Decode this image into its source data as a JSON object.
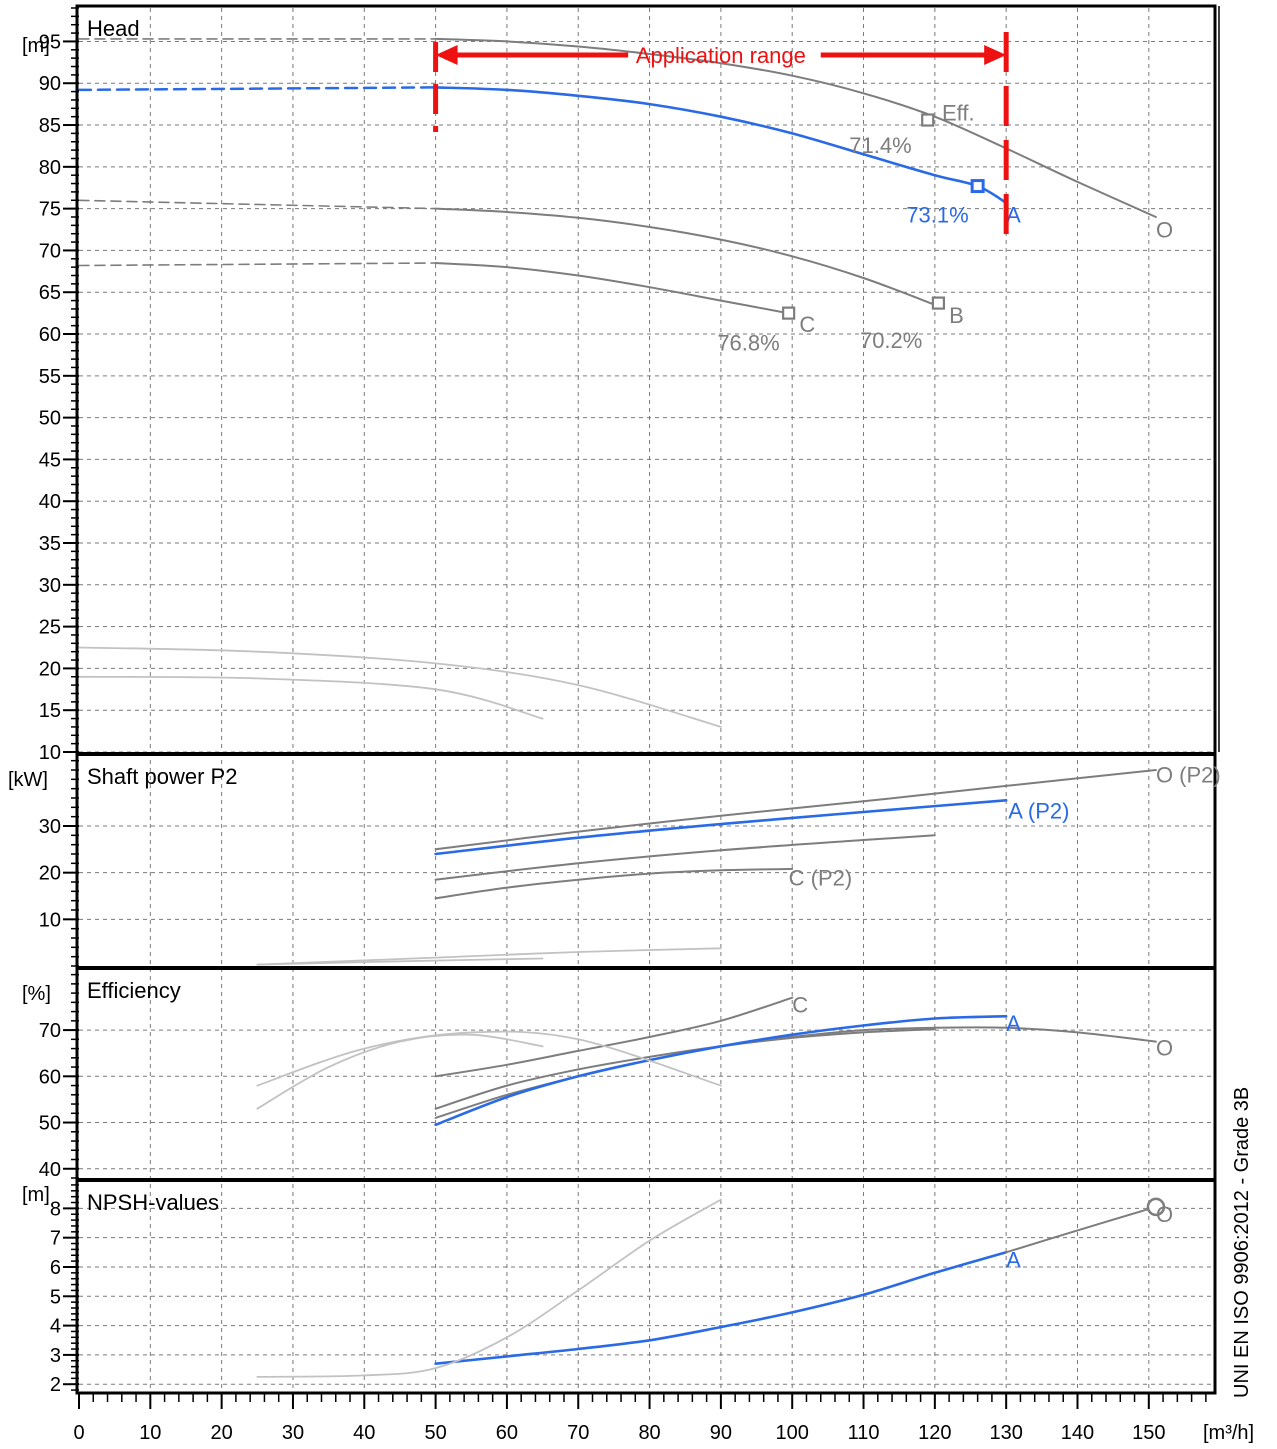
{
  "chart_data": {
    "type": "line",
    "x_unit_label": "[m³/h]",
    "x_ticks": [
      0,
      10,
      20,
      30,
      40,
      50,
      60,
      70,
      80,
      90,
      100,
      110,
      120,
      130,
      140,
      150
    ],
    "xlim": [
      0,
      159
    ],
    "side_label": "UNI EN ISO 9906:2012 - Grade 3B",
    "colors": {
      "selected": "#2a6ae6",
      "gray": "#7d7d7d",
      "light": "#c2c2c2",
      "range": "#ee1111"
    },
    "application_range": {
      "label": "Application range",
      "x": [
        50,
        130
      ]
    },
    "panels": [
      {
        "id": "head",
        "title": "Head",
        "unit_label": "[m]",
        "ylim": [
          10,
          99
        ],
        "y_ticks": [
          10,
          15,
          20,
          25,
          30,
          35,
          40,
          45,
          50,
          55,
          60,
          65,
          70,
          75,
          80,
          85,
          90,
          95
        ],
        "series": [
          {
            "id": "O",
            "color": "gray",
            "x": [
              50,
              60,
              70,
              80,
              90,
              100,
              110,
              120,
              130,
              140,
              151
            ],
            "y": [
              95.3,
              95.0,
              94.4,
              93.5,
              92.4,
              90.9,
              88.8,
              86.0,
              82.2,
              78.2,
              74.0
            ]
          },
          {
            "id": "A",
            "color": "selected",
            "x": [
              50,
              60,
              70,
              80,
              90,
              100,
              110,
              120,
              126,
              130
            ],
            "y": [
              89.5,
              89.2,
              88.5,
              87.5,
              86.0,
              84.0,
              81.5,
              79.0,
              77.7,
              75.7
            ]
          },
          {
            "id": "B",
            "color": "gray",
            "x": [
              50,
              60,
              70,
              80,
              90,
              100,
              110,
              120
            ],
            "y": [
              75.0,
              74.6,
              73.9,
              72.8,
              71.3,
              69.3,
              66.7,
              63.5
            ]
          },
          {
            "id": "C",
            "color": "gray",
            "x": [
              50,
              60,
              70,
              80,
              90,
              100
            ],
            "y": [
              68.5,
              68.0,
              67.0,
              65.6,
              64.0,
              62.4
            ]
          },
          {
            "id": "L1",
            "color": "light",
            "x": [
              0,
              25,
              50,
              70,
              90
            ],
            "y": [
              22.5,
              22.0,
              20.6,
              18.0,
              13.0
            ]
          },
          {
            "id": "L2",
            "color": "light",
            "x": [
              0,
              25,
              50,
              65
            ],
            "y": [
              19.0,
              18.8,
              17.5,
              14.0
            ]
          }
        ],
        "dashed_extensions": [
          {
            "color": "selected",
            "x": [
              0,
              50
            ],
            "y": [
              89.2,
              89.5
            ]
          },
          {
            "color": "gray",
            "x": [
              0,
              50
            ],
            "y": [
              95.3,
              95.3
            ]
          },
          {
            "color": "gray",
            "x": [
              0,
              50
            ],
            "y": [
              76.0,
              75.0
            ]
          },
          {
            "color": "gray",
            "x": [
              0,
              50
            ],
            "y": [
              68.2,
              68.5
            ]
          }
        ],
        "markers": [
          {
            "x": 126,
            "y": 77.7,
            "color": "selected"
          },
          {
            "x": 119,
            "y": 85.6,
            "color": "gray"
          },
          {
            "x": 120.5,
            "y": 63.7,
            "color": "gray"
          },
          {
            "x": 99.5,
            "y": 62.5,
            "color": "gray"
          }
        ],
        "labels": [
          {
            "text": "Eff.",
            "x": 121,
            "y": 86.5,
            "color": "gray"
          },
          {
            "text": "71.4%",
            "x": 108,
            "y": 82.6,
            "color": "gray"
          },
          {
            "text": "73.1%",
            "x": 116,
            "y": 74.3,
            "color": "selected"
          },
          {
            "text": "A",
            "x": 130,
            "y": 74.3,
            "color": "selected"
          },
          {
            "text": "O",
            "x": 151,
            "y": 72.5,
            "color": "gray"
          },
          {
            "text": "B",
            "x": 122,
            "y": 62.3,
            "color": "gray"
          },
          {
            "text": "70.2%",
            "x": 109.5,
            "y": 59.3,
            "color": "gray"
          },
          {
            "text": "C",
            "x": 101,
            "y": 61.2,
            "color": "gray"
          },
          {
            "text": "76.8%",
            "x": 89.5,
            "y": 59.0,
            "color": "gray"
          }
        ]
      },
      {
        "id": "power",
        "title": "Shaft power P2",
        "unit_label": "[kW]",
        "ylim": [
          0,
          45
        ],
        "y_ticks": [
          10,
          20,
          30
        ],
        "series": [
          {
            "id": "O (P2)",
            "color": "gray",
            "x": [
              50,
              70,
              90,
              110,
              130,
              151
            ],
            "y": [
              25.0,
              28.8,
              32.2,
              35.3,
              38.6,
              42.0
            ]
          },
          {
            "id": "A (P2)",
            "color": "selected",
            "x": [
              50,
              70,
              90,
              110,
              130
            ],
            "y": [
              24.0,
              27.5,
              30.4,
              33.0,
              35.5
            ]
          },
          {
            "id": "B (P2)",
            "color": "gray",
            "x": [
              50,
              70,
              90,
              110,
              120
            ],
            "y": [
              18.5,
              22.0,
              24.8,
              27.0,
              28.0
            ]
          },
          {
            "id": "C (P2)",
            "color": "gray",
            "x": [
              50,
              60,
              70,
              80,
              90,
              100
            ],
            "y": [
              14.5,
              16.8,
              18.5,
              19.8,
              20.5,
              20.8
            ]
          },
          {
            "id": "L1",
            "color": "light",
            "x": [
              25,
              50,
              70,
              90
            ],
            "y": [
              0.3,
              1.8,
              3.0,
              3.8
            ]
          },
          {
            "id": "L2",
            "color": "light",
            "x": [
              25,
              45,
              65
            ],
            "y": [
              0.3,
              1.0,
              1.6
            ]
          }
        ],
        "labels": [
          {
            "text": "O (P2)",
            "x": 151,
            "y": 41.0,
            "color": "gray"
          },
          {
            "text": "A (P2)",
            "x": 130.3,
            "y": 33.3,
            "color": "selected"
          },
          {
            "text": "C (P2)",
            "x": 99.5,
            "y": 19.0,
            "color": "gray"
          }
        ]
      },
      {
        "id": "efficiency",
        "title": "Efficiency",
        "unit_label": "[%]",
        "ylim": [
          38,
          83
        ],
        "y_ticks": [
          40,
          50,
          60,
          70
        ],
        "series": [
          {
            "id": "C",
            "color": "gray",
            "x": [
              50,
              60,
              70,
              80,
              90,
              100
            ],
            "y": [
              60,
              62.5,
              65.5,
              68.5,
              72,
              77
            ]
          },
          {
            "id": "O",
            "color": "gray",
            "x": [
              50,
              60,
              70,
              80,
              90,
              100,
              110,
              120,
              130,
              140,
              151
            ],
            "y": [
              51,
              56,
              60,
              63.5,
              66.5,
              68.5,
              70,
              70.5,
              70.5,
              69.5,
              67.5
            ]
          },
          {
            "id": "B",
            "color": "gray",
            "x": [
              50,
              60,
              70,
              80,
              90,
              100,
              110,
              120
            ],
            "y": [
              53,
              58,
              61.5,
              64.2,
              66.5,
              68.3,
              69.5,
              70.2
            ]
          },
          {
            "id": "A",
            "color": "selected",
            "x": [
              50,
              60,
              70,
              80,
              90,
              100,
              110,
              120,
              130
            ],
            "y": [
              49.5,
              55.5,
              60,
              63.5,
              66.5,
              69,
              71,
              72.5,
              73
            ]
          },
          {
            "id": "L1",
            "color": "light",
            "x": [
              25,
              35,
              45,
              55,
              65
            ],
            "y": [
              53,
              62,
              67.5,
              69,
              66.5
            ]
          },
          {
            "id": "L2",
            "color": "light",
            "x": [
              25,
              40,
              55,
              70,
              90
            ],
            "y": [
              58,
              66,
              69.5,
              68,
              58
            ]
          }
        ],
        "labels": [
          {
            "text": "C",
            "x": 100,
            "y": 75.5,
            "color": "gray"
          },
          {
            "text": "A",
            "x": 130,
            "y": 71.5,
            "color": "selected"
          },
          {
            "text": "O",
            "x": 151,
            "y": 66.2,
            "color": "gray"
          }
        ]
      },
      {
        "id": "npsh",
        "title": "NPSH-values",
        "unit_label": "[m]",
        "ylim": [
          1.7,
          8.9
        ],
        "y_ticks": [
          2,
          3,
          4,
          5,
          6,
          7,
          8
        ],
        "series": [
          {
            "id": "A",
            "color": "selected",
            "x": [
              50,
              60,
              70,
              80,
              90,
              100,
              110,
              120,
              130
            ],
            "y": [
              2.7,
              2.95,
              3.2,
              3.5,
              3.95,
              4.45,
              5.05,
              5.8,
              6.5
            ]
          },
          {
            "id": "O",
            "color": "gray",
            "x": [
              130,
              140,
              151
            ],
            "y": [
              6.5,
              7.25,
              8.05
            ]
          },
          {
            "id": "L1",
            "color": "light",
            "x": [
              25,
              40,
              50,
              60,
              70,
              80,
              90
            ],
            "y": [
              2.25,
              2.3,
              2.55,
              3.6,
              5.2,
              6.9,
              8.3
            ]
          }
        ],
        "markers": [
          {
            "x": 151,
            "y": 8.05,
            "color": "gray",
            "shape": "circle"
          }
        ],
        "labels": [
          {
            "text": "A",
            "x": 130,
            "y": 6.25,
            "color": "selected"
          },
          {
            "text": "O",
            "x": 151,
            "y": 7.8,
            "color": "gray"
          }
        ]
      }
    ]
  }
}
